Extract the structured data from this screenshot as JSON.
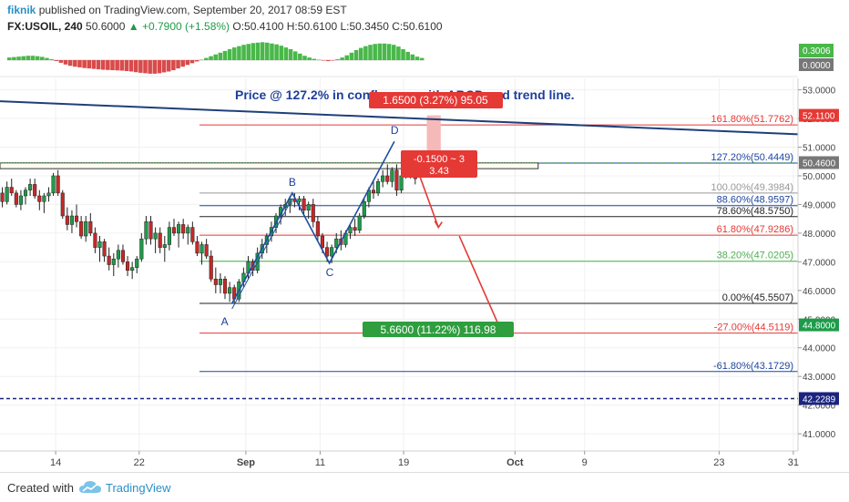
{
  "header": {
    "author": "fiknik",
    "published_text": "published on TradingView.com, September 20, 2017 08:59 EST",
    "symbol": "FX:USOIL, 240",
    "last": "50.6000",
    "change": "▲ +0.7900 (+1.58%)",
    "ohlc": "O:50.4100 H:50.6100 L:50.3450 C:50.6100"
  },
  "footer": {
    "created_with": "Created with",
    "brand": "TradingView"
  },
  "chart_data": {
    "type": "candlestick",
    "title": "Price @ 127.2% in confluence with ABCD and trend line.",
    "ylim": [
      40.4,
      53.4
    ],
    "xlim": [
      0,
      172
    ],
    "x_ticks": [
      {
        "label": "14",
        "x": 12
      },
      {
        "label": "22",
        "x": 30
      },
      {
        "label": "Sep",
        "x": 53
      },
      {
        "label": "11",
        "x": 69
      },
      {
        "label": "19",
        "x": 87
      },
      {
        "label": "Oct",
        "x": 111
      },
      {
        "label": "9",
        "x": 126
      },
      {
        "label": "23",
        "x": 155
      },
      {
        "label": "31",
        "x": 171
      }
    ],
    "y_ticks": [
      "41.0000",
      "42.0000",
      "43.0000",
      "44.0000",
      "45.0000",
      "46.0000",
      "47.0000",
      "48.0000",
      "49.0000",
      "50.0000",
      "51.0000",
      "52.0000",
      "53.0000"
    ],
    "price_labels": [
      {
        "text": "52.1100",
        "value": 52.11,
        "color": "#e53935"
      },
      {
        "text": "50.4600",
        "value": 50.46,
        "color": "#777777"
      },
      {
        "text": "44.8000",
        "value": 44.8,
        "color": "#1e9b4a"
      },
      {
        "text": "42.2289",
        "value": 42.2289,
        "color": "#1a237e"
      }
    ],
    "fib_levels": [
      {
        "label": "161.80%(51.7762)",
        "value": 51.7762,
        "color": "#e53935"
      },
      {
        "label": "127.20%(50.4449)",
        "value": 50.4449,
        "color": "#1e46a0"
      },
      {
        "label": "100.00%(49.3984)",
        "value": 49.3984,
        "color": "#999999"
      },
      {
        "label": "88.60%(48.9597)",
        "value": 48.9597,
        "color": "#1e46a0"
      },
      {
        "label": "78.60%(48.5750)",
        "value": 48.575,
        "color": "#222222"
      },
      {
        "label": "61.80%(47.9286)",
        "value": 47.9286,
        "color": "#e53935"
      },
      {
        "label": "38.20%(47.0205)",
        "value": 47.0205,
        "color": "#4caf50"
      },
      {
        "label": "0.00%(45.5507)",
        "value": 45.5507,
        "color": "#222222"
      },
      {
        "label": "-27.00%(44.5119)",
        "value": 44.5119,
        "color": "#e53935"
      },
      {
        "label": "-61.80%(43.1729)",
        "value": 43.1729,
        "color": "#1e46a0"
      }
    ],
    "abcd_points": [
      {
        "label": "A",
        "x": 50,
        "y": 45.55
      },
      {
        "label": "B",
        "x": 63,
        "y": 49.4
      },
      {
        "label": "C",
        "x": 71,
        "y": 46.95
      },
      {
        "label": "D",
        "x": 85,
        "y": 51.2
      }
    ],
    "trend_line": {
      "x1": 0,
      "y1": 52.6,
      "x2": 172,
      "y2": 51.45
    },
    "dashed_line": 42.2289,
    "resistance_box": {
      "x1": 0,
      "x2": 116,
      "y1": 50.25,
      "y2": 50.45
    },
    "measure_up": {
      "label": "1.6500 (3.27%) 95.05",
      "x1": 92,
      "x2": 95,
      "y1": 50.46,
      "y2": 52.11
    },
    "measure_down": {
      "label": "5.6600 (11.22%) 116.98",
      "x1": 92,
      "x2": 95,
      "y1": 44.8,
      "y2": 50.46
    },
    "info_box": {
      "line1": "-0.1500 ~ 3",
      "line2": "3.43"
    },
    "oscillator": {
      "labels": [
        "0.3006",
        "0.0000"
      ],
      "values": [
        0.12,
        0.14,
        0.16,
        0.18,
        0.2,
        0.2,
        0.18,
        0.15,
        0.1,
        0.04,
        -0.04,
        -0.12,
        -0.2,
        -0.26,
        -0.3,
        -0.33,
        -0.36,
        -0.38,
        -0.4,
        -0.42,
        -0.44,
        -0.45,
        -0.46,
        -0.47,
        -0.48,
        -0.5,
        -0.52,
        -0.55,
        -0.58,
        -0.6,
        -0.62,
        -0.62,
        -0.6,
        -0.56,
        -0.52,
        -0.46,
        -0.38,
        -0.3,
        -0.22,
        -0.14,
        -0.06,
        0.02,
        0.1,
        0.18,
        0.26,
        0.34,
        0.42,
        0.5,
        0.58,
        0.64,
        0.7,
        0.74,
        0.78,
        0.8,
        0.82,
        0.8,
        0.76,
        0.72,
        0.66,
        0.58,
        0.5,
        0.4,
        0.3,
        0.2,
        0.12,
        0.06,
        0.02,
        -0.02,
        -0.04,
        -0.02,
        0.04,
        0.12,
        0.22,
        0.34,
        0.46,
        0.56,
        0.64,
        0.7,
        0.74,
        0.76,
        0.76,
        0.74,
        0.7,
        0.62,
        0.5,
        0.38,
        0.26,
        0.16,
        0.1
      ]
    },
    "candles": [
      {
        "o": 49.4,
        "h": 49.6,
        "l": 48.9,
        "c": 49.1
      },
      {
        "o": 49.1,
        "h": 49.8,
        "l": 49.0,
        "c": 49.6
      },
      {
        "o": 49.6,
        "h": 49.9,
        "l": 49.3,
        "c": 49.4
      },
      {
        "o": 49.4,
        "h": 49.5,
        "l": 48.9,
        "c": 49.0
      },
      {
        "o": 49.0,
        "h": 49.5,
        "l": 48.8,
        "c": 49.3
      },
      {
        "o": 49.3,
        "h": 49.6,
        "l": 49.0,
        "c": 49.5
      },
      {
        "o": 49.5,
        "h": 49.9,
        "l": 49.3,
        "c": 49.7
      },
      {
        "o": 49.7,
        "h": 49.9,
        "l": 49.2,
        "c": 49.3
      },
      {
        "o": 49.3,
        "h": 49.5,
        "l": 48.8,
        "c": 49.1
      },
      {
        "o": 49.1,
        "h": 49.4,
        "l": 48.7,
        "c": 49.3
      },
      {
        "o": 49.3,
        "h": 49.6,
        "l": 49.1,
        "c": 49.4
      },
      {
        "o": 49.4,
        "h": 50.1,
        "l": 49.3,
        "c": 50.0
      },
      {
        "o": 50.0,
        "h": 50.2,
        "l": 49.3,
        "c": 49.4
      },
      {
        "o": 49.4,
        "h": 49.5,
        "l": 48.5,
        "c": 48.6
      },
      {
        "o": 48.6,
        "h": 48.9,
        "l": 48.1,
        "c": 48.3
      },
      {
        "o": 48.3,
        "h": 48.8,
        "l": 48.0,
        "c": 48.6
      },
      {
        "o": 48.6,
        "h": 49.0,
        "l": 48.2,
        "c": 48.4
      },
      {
        "o": 48.4,
        "h": 48.6,
        "l": 47.8,
        "c": 47.9
      },
      {
        "o": 47.9,
        "h": 48.6,
        "l": 47.7,
        "c": 48.4
      },
      {
        "o": 48.4,
        "h": 48.7,
        "l": 47.9,
        "c": 48.0
      },
      {
        "o": 48.0,
        "h": 48.2,
        "l": 47.3,
        "c": 47.5
      },
      {
        "o": 47.5,
        "h": 47.9,
        "l": 47.0,
        "c": 47.7
      },
      {
        "o": 47.7,
        "h": 47.8,
        "l": 47.0,
        "c": 47.2
      },
      {
        "o": 47.2,
        "h": 47.5,
        "l": 46.7,
        "c": 46.9
      },
      {
        "o": 46.9,
        "h": 47.3,
        "l": 46.5,
        "c": 47.1
      },
      {
        "o": 47.1,
        "h": 47.6,
        "l": 46.8,
        "c": 47.4
      },
      {
        "o": 47.4,
        "h": 47.6,
        "l": 46.9,
        "c": 47.0
      },
      {
        "o": 47.0,
        "h": 47.2,
        "l": 46.5,
        "c": 46.7
      },
      {
        "o": 46.7,
        "h": 47.0,
        "l": 46.4,
        "c": 46.8
      },
      {
        "o": 46.8,
        "h": 47.2,
        "l": 46.6,
        "c": 47.1
      },
      {
        "o": 47.1,
        "h": 48.0,
        "l": 47.0,
        "c": 47.8
      },
      {
        "o": 47.8,
        "h": 48.6,
        "l": 47.6,
        "c": 48.4
      },
      {
        "o": 48.4,
        "h": 48.6,
        "l": 47.6,
        "c": 47.8
      },
      {
        "o": 47.8,
        "h": 48.2,
        "l": 47.3,
        "c": 48.0
      },
      {
        "o": 48.0,
        "h": 48.2,
        "l": 47.3,
        "c": 47.5
      },
      {
        "o": 47.5,
        "h": 47.9,
        "l": 47.0,
        "c": 47.6
      },
      {
        "o": 47.6,
        "h": 48.4,
        "l": 47.4,
        "c": 48.2
      },
      {
        "o": 48.2,
        "h": 48.5,
        "l": 47.9,
        "c": 48.0
      },
      {
        "o": 48.0,
        "h": 48.4,
        "l": 47.5,
        "c": 48.3
      },
      {
        "o": 48.3,
        "h": 48.5,
        "l": 47.8,
        "c": 48.0
      },
      {
        "o": 48.0,
        "h": 48.3,
        "l": 47.6,
        "c": 48.2
      },
      {
        "o": 48.2,
        "h": 48.4,
        "l": 47.6,
        "c": 47.7
      },
      {
        "o": 47.7,
        "h": 47.9,
        "l": 47.2,
        "c": 47.3
      },
      {
        "o": 47.3,
        "h": 47.7,
        "l": 46.9,
        "c": 47.6
      },
      {
        "o": 47.6,
        "h": 47.8,
        "l": 47.1,
        "c": 47.2
      },
      {
        "o": 47.2,
        "h": 47.4,
        "l": 46.3,
        "c": 46.4
      },
      {
        "o": 46.4,
        "h": 46.8,
        "l": 45.9,
        "c": 46.2
      },
      {
        "o": 46.2,
        "h": 46.6,
        "l": 45.9,
        "c": 46.4
      },
      {
        "o": 46.4,
        "h": 46.5,
        "l": 45.7,
        "c": 45.9
      },
      {
        "o": 45.9,
        "h": 46.3,
        "l": 45.6,
        "c": 46.1
      },
      {
        "o": 46.1,
        "h": 46.2,
        "l": 45.55,
        "c": 45.7
      },
      {
        "o": 45.7,
        "h": 46.4,
        "l": 45.6,
        "c": 46.3
      },
      {
        "o": 46.3,
        "h": 46.8,
        "l": 46.1,
        "c": 46.6
      },
      {
        "o": 46.6,
        "h": 47.2,
        "l": 46.4,
        "c": 47.0
      },
      {
        "o": 47.0,
        "h": 47.1,
        "l": 46.5,
        "c": 46.7
      },
      {
        "o": 46.7,
        "h": 47.5,
        "l": 46.6,
        "c": 47.3
      },
      {
        "o": 47.3,
        "h": 47.8,
        "l": 47.1,
        "c": 47.6
      },
      {
        "o": 47.6,
        "h": 48.0,
        "l": 47.3,
        "c": 47.9
      },
      {
        "o": 47.9,
        "h": 48.4,
        "l": 47.7,
        "c": 48.2
      },
      {
        "o": 48.2,
        "h": 48.7,
        "l": 48.0,
        "c": 48.6
      },
      {
        "o": 48.6,
        "h": 49.0,
        "l": 48.3,
        "c": 48.9
      },
      {
        "o": 48.9,
        "h": 49.2,
        "l": 48.6,
        "c": 49.0
      },
      {
        "o": 49.0,
        "h": 49.3,
        "l": 48.7,
        "c": 49.2
      },
      {
        "o": 49.2,
        "h": 49.4,
        "l": 48.9,
        "c": 49.1
      },
      {
        "o": 49.1,
        "h": 49.3,
        "l": 48.8,
        "c": 49.2
      },
      {
        "o": 49.2,
        "h": 49.3,
        "l": 48.6,
        "c": 48.8
      },
      {
        "o": 48.8,
        "h": 49.1,
        "l": 48.5,
        "c": 49.0
      },
      {
        "o": 49.0,
        "h": 49.2,
        "l": 48.2,
        "c": 48.4
      },
      {
        "o": 48.4,
        "h": 48.6,
        "l": 47.7,
        "c": 47.9
      },
      {
        "o": 47.9,
        "h": 48.0,
        "l": 47.3,
        "c": 47.5
      },
      {
        "o": 47.5,
        "h": 47.7,
        "l": 47.0,
        "c": 47.2
      },
      {
        "o": 47.2,
        "h": 47.6,
        "l": 46.95,
        "c": 47.5
      },
      {
        "o": 47.5,
        "h": 48.0,
        "l": 47.3,
        "c": 47.8
      },
      {
        "o": 47.8,
        "h": 48.1,
        "l": 47.4,
        "c": 47.6
      },
      {
        "o": 47.6,
        "h": 48.1,
        "l": 47.5,
        "c": 48.0
      },
      {
        "o": 48.0,
        "h": 48.3,
        "l": 47.8,
        "c": 48.2
      },
      {
        "o": 48.2,
        "h": 48.5,
        "l": 47.9,
        "c": 48.1
      },
      {
        "o": 48.1,
        "h": 48.7,
        "l": 48.0,
        "c": 48.6
      },
      {
        "o": 48.6,
        "h": 49.2,
        "l": 48.5,
        "c": 49.1
      },
      {
        "o": 49.1,
        "h": 49.6,
        "l": 48.9,
        "c": 49.5
      },
      {
        "o": 49.5,
        "h": 49.8,
        "l": 49.2,
        "c": 49.4
      },
      {
        "o": 49.4,
        "h": 49.9,
        "l": 49.3,
        "c": 49.8
      },
      {
        "o": 49.8,
        "h": 50.2,
        "l": 49.6,
        "c": 50.0
      },
      {
        "o": 50.0,
        "h": 50.4,
        "l": 49.7,
        "c": 49.8
      },
      {
        "o": 49.8,
        "h": 50.3,
        "l": 49.6,
        "c": 50.2
      },
      {
        "o": 50.2,
        "h": 50.4,
        "l": 49.3,
        "c": 49.5
      },
      {
        "o": 49.5,
        "h": 50.2,
        "l": 49.4,
        "c": 50.0
      },
      {
        "o": 50.0,
        "h": 50.5,
        "l": 49.9,
        "c": 50.4
      },
      {
        "o": 50.4,
        "h": 50.61,
        "l": 49.9,
        "c": 50.1
      },
      {
        "o": 50.1,
        "h": 50.3,
        "l": 49.7,
        "c": 49.9
      }
    ]
  }
}
